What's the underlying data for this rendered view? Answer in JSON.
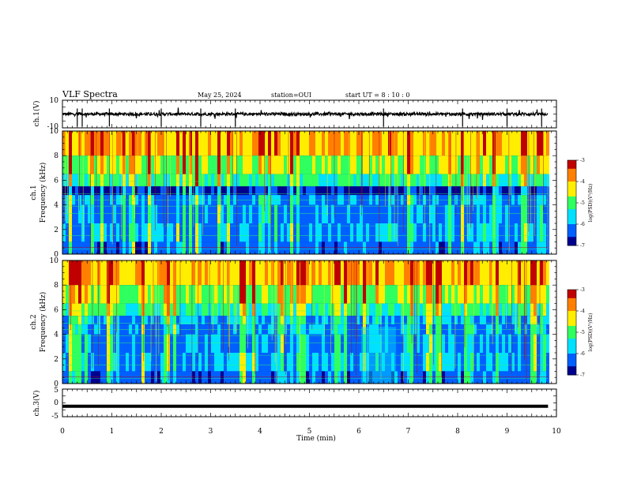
{
  "header": {
    "title": "VLF Spectra",
    "date": "May 25, 2024",
    "station": "station=OUI",
    "start": "start  UT =   8  : 10 : 0"
  },
  "colors": {
    "low": "#00008f",
    "mid_blue": "#0060ff",
    "cyan": "#00e0ff",
    "green": "#30ff60",
    "yellow": "#ffee00",
    "orange": "#ff8000",
    "high": "#c00000"
  },
  "chart_data": [
    {
      "type": "line",
      "panel": "ch1-waveform",
      "ylabel": "ch.1(V)",
      "ylim": [
        -10,
        10
      ],
      "yticks": [
        "10",
        "-10"
      ],
      "baseline_value": 0,
      "xlim": [
        0,
        10
      ]
    },
    {
      "type": "heatmap",
      "panel": "ch1-spectrogram",
      "ylabel_channel": "ch.1",
      "ylabel": "Frequency (kHz)",
      "ylim": [
        0,
        10
      ],
      "yticks": [
        "0",
        "2",
        "4",
        "6",
        "8",
        "10"
      ],
      "xlim": [
        0,
        10
      ],
      "data_end_min": 9.83,
      "colorbar": {
        "label": "log(PSD)(V²/Hz)",
        "range": [
          -7,
          -3
        ],
        "ticks": [
          "-3",
          "-4",
          "-5",
          "-6",
          "-7"
        ]
      }
    },
    {
      "type": "heatmap",
      "panel": "ch2-spectrogram",
      "ylabel_channel": "ch.2",
      "ylabel": "Frequency (kHz)",
      "ylim": [
        0,
        10
      ],
      "yticks": [
        "0",
        "2",
        "4",
        "6",
        "8",
        "10"
      ],
      "xlim": [
        0,
        10
      ],
      "data_end_min": 9.83,
      "colorbar": {
        "label": "log(PSD)(V²/Hz)",
        "range": [
          -7,
          -3
        ],
        "ticks": [
          "-3",
          "-4",
          "-5",
          "-6",
          "-7"
        ]
      }
    },
    {
      "type": "line",
      "panel": "ch3-waveform",
      "ylabel": "ch.3(V)",
      "ylim": [
        -5,
        5
      ],
      "yticks": [
        "5",
        "0",
        "-5"
      ],
      "baseline_value": -1.2,
      "xlim": [
        0,
        10
      ]
    }
  ],
  "xaxis": {
    "label": "Time  (min)",
    "ticks": [
      "0",
      "1",
      "2",
      "3",
      "4",
      "5",
      "6",
      "7",
      "8",
      "9",
      "10"
    ]
  }
}
